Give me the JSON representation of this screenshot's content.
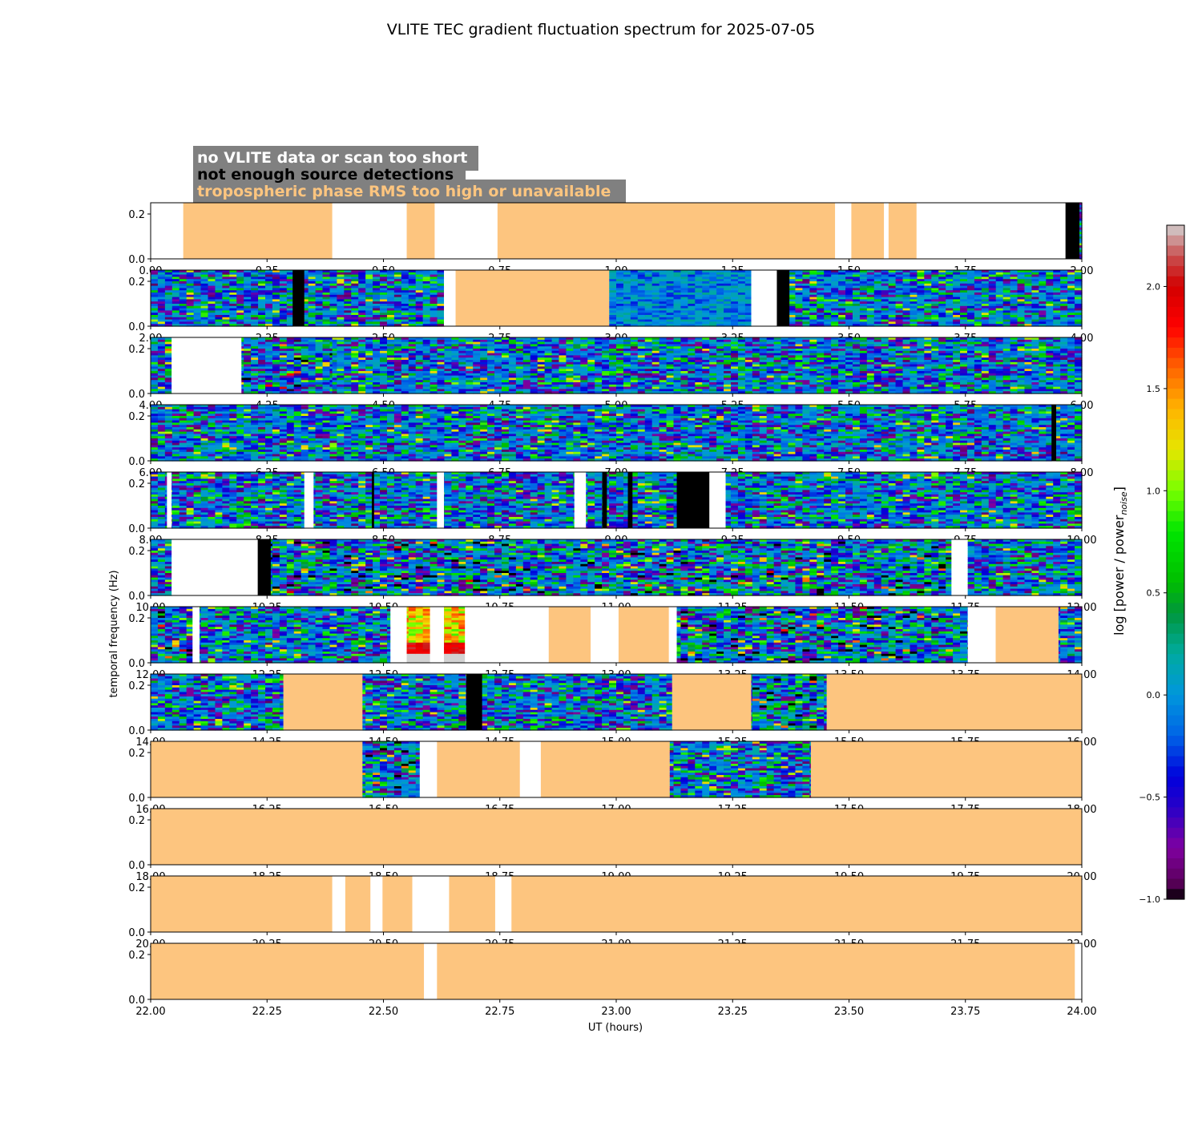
{
  "chart_data": {
    "type": "heatmap",
    "title": "VLITE TEC gradient fluctuation spectrum for 2025-07-05",
    "xlabel": "UT (hours)",
    "ylabel": "temporal frequency (Hz)",
    "colorbar_label": "log [power / power",
    "colorbar_label_sub": "noise",
    "colorbar_label_end": "]",
    "colorbar_range": [
      -1.0,
      2.3
    ],
    "colorbar_ticks": [
      "2.0",
      "1.5",
      "1.0",
      "0.5",
      "0.0",
      "−0.5",
      "−1.0"
    ],
    "colorbar_tick_values": [
      2.0,
      1.5,
      1.0,
      0.5,
      0.0,
      -0.5,
      -1.0
    ],
    "ylim": [
      0,
      0.25
    ],
    "y_ticks": [
      "0.2",
      "0.0"
    ],
    "y_tick_values": [
      0.2,
      0.0
    ],
    "legend": [
      {
        "label": "no VLITE data or scan too short",
        "color": "#ffffff"
      },
      {
        "label": "not enough source detections",
        "color": "#000000"
      },
      {
        "label": "tropospheric phase RMS too high or unavailable",
        "color": "#fdc57f"
      }
    ],
    "legend_box_color": "#808080",
    "colors": {
      "flag_troposphere": "#fdc57f",
      "flag_nodata": "#ffffff",
      "flag_detections": "#000000"
    },
    "panels": [
      {
        "x_range": [
          0,
          2
        ],
        "x_ticks": [
          "0.00",
          "0.25",
          "0.50",
          "0.75",
          "1.00",
          "1.25",
          "1.50",
          "1.75",
          "2.00"
        ],
        "segments": [
          [
            "w",
            0,
            0.07
          ],
          [
            "o",
            0.07,
            0.39
          ],
          [
            "w",
            0.39,
            0.55
          ],
          [
            "o",
            0.55,
            0.61
          ],
          [
            "w",
            0.61,
            0.745
          ],
          [
            "o",
            0.745,
            1.47
          ],
          [
            "w",
            1.47,
            1.505
          ],
          [
            "o",
            1.505,
            1.575
          ],
          [
            "w",
            1.575,
            1.585
          ],
          [
            "o",
            1.585,
            1.645
          ],
          [
            "w",
            1.645,
            1.965
          ],
          [
            "k",
            1.965,
            1.995
          ],
          [
            "d",
            1.995,
            2.0
          ]
        ]
      },
      {
        "x_range": [
          2,
          4
        ],
        "x_ticks": [
          "2.00",
          "2.25",
          "2.50",
          "2.75",
          "3.00",
          "3.25",
          "3.50",
          "3.75",
          "4.00"
        ],
        "segments": [
          [
            "d",
            2.0,
            2.305
          ],
          [
            "k",
            2.305,
            2.33
          ],
          [
            "d",
            2.33,
            2.63
          ],
          [
            "w",
            2.63,
            2.655
          ],
          [
            "o",
            2.655,
            2.985
          ],
          [
            "c",
            2.985,
            3.29
          ],
          [
            "w",
            3.29,
            3.345
          ],
          [
            "k",
            3.345,
            3.372
          ],
          [
            "d",
            3.372,
            4.0
          ]
        ]
      },
      {
        "x_range": [
          4,
          6
        ],
        "x_ticks": [
          "4.00",
          "4.25",
          "4.50",
          "4.75",
          "5.00",
          "5.25",
          "5.50",
          "5.75",
          "6.00"
        ],
        "segments": [
          [
            "h",
            4.0,
            4.045
          ],
          [
            "w",
            4.045,
            4.195
          ],
          [
            "h",
            4.195,
            4.39
          ],
          [
            "d",
            4.39,
            6.0
          ]
        ]
      },
      {
        "x_range": [
          6,
          8
        ],
        "x_ticks": [
          "6.00",
          "6.25",
          "6.50",
          "6.75",
          "7.00",
          "7.25",
          "7.50",
          "7.75",
          "8.00"
        ],
        "segments": [
          [
            "d",
            6.0,
            7.935
          ],
          [
            "k",
            7.935,
            7.945
          ],
          [
            "d",
            7.945,
            8.0
          ]
        ]
      },
      {
        "x_range": [
          8,
          10
        ],
        "x_ticks": [
          "8.00",
          "8.25",
          "8.50",
          "8.75",
          "9.00",
          "9.25",
          "9.50",
          "9.75",
          "10.00"
        ],
        "segments": [
          [
            "d",
            8.0,
            8.035
          ],
          [
            "w",
            8.035,
            8.045
          ],
          [
            "d",
            8.045,
            8.33
          ],
          [
            "w",
            8.33,
            8.35
          ],
          [
            "d",
            8.35,
            8.475
          ],
          [
            "k",
            8.475,
            8.48
          ],
          [
            "d",
            8.48,
            8.615
          ],
          [
            "w",
            8.615,
            8.63
          ],
          [
            "d",
            8.63,
            8.91
          ],
          [
            "w",
            8.91,
            8.935
          ],
          [
            "d",
            8.935,
            8.97
          ],
          [
            "k",
            8.97,
            8.98
          ],
          [
            "d",
            8.98,
            9.025
          ],
          [
            "k",
            9.025,
            9.035
          ],
          [
            "d",
            9.035,
            9.13
          ],
          [
            "k",
            9.13,
            9.2
          ],
          [
            "w",
            9.2,
            9.235
          ],
          [
            "d",
            9.235,
            10.0
          ]
        ]
      },
      {
        "x_range": [
          10,
          12
        ],
        "x_ticks": [
          "10.00",
          "10.25",
          "10.50",
          "10.75",
          "11.00",
          "11.25",
          "11.50",
          "11.75",
          "12.00"
        ],
        "segments": [
          [
            "d",
            10.0,
            10.045
          ],
          [
            "w",
            10.045,
            10.23
          ],
          [
            "k",
            10.23,
            10.258
          ],
          [
            "h",
            10.258,
            11.72
          ],
          [
            "w",
            11.72,
            11.755
          ],
          [
            "d",
            11.755,
            12.0
          ]
        ]
      },
      {
        "x_range": [
          12,
          14
        ],
        "x_ticks": [
          "12.00",
          "12.25",
          "12.50",
          "12.75",
          "13.00",
          "13.25",
          "13.50",
          "13.75",
          "14.00"
        ],
        "segments": [
          [
            "h",
            12.0,
            12.09
          ],
          [
            "w",
            12.09,
            12.105
          ],
          [
            "d",
            12.105,
            12.515
          ],
          [
            "w",
            12.515,
            12.55
          ],
          [
            "s",
            12.55,
            12.6
          ],
          [
            "w",
            12.6,
            12.63
          ],
          [
            "s",
            12.63,
            12.675
          ],
          [
            "w",
            12.675,
            12.855
          ],
          [
            "o",
            12.855,
            12.945
          ],
          [
            "w",
            12.945,
            13.005
          ],
          [
            "o",
            13.005,
            13.113
          ],
          [
            "w",
            13.113,
            13.13
          ],
          [
            "h",
            13.13,
            13.755
          ],
          [
            "w",
            13.755,
            13.815
          ],
          [
            "o",
            13.815,
            13.95
          ],
          [
            "d",
            13.95,
            14.0
          ]
        ]
      },
      {
        "x_range": [
          14,
          16
        ],
        "x_ticks": [
          "14.00",
          "14.25",
          "14.50",
          "14.75",
          "15.00",
          "15.25",
          "15.50",
          "15.75",
          "16.00"
        ],
        "segments": [
          [
            "d",
            14.0,
            14.285
          ],
          [
            "o",
            14.285,
            14.455
          ],
          [
            "d",
            14.455,
            14.678
          ],
          [
            "k",
            14.678,
            14.712
          ],
          [
            "d",
            14.712,
            15.12
          ],
          [
            "o",
            15.12,
            15.29
          ],
          [
            "h",
            15.29,
            15.452
          ],
          [
            "o",
            15.452,
            16.0
          ]
        ]
      },
      {
        "x_range": [
          16,
          18
        ],
        "x_ticks": [
          "16.00",
          "16.25",
          "16.50",
          "16.75",
          "17.00",
          "17.25",
          "17.50",
          "17.75",
          "18.00"
        ],
        "segments": [
          [
            "o",
            16.0,
            16.455
          ],
          [
            "h",
            16.455,
            16.578
          ],
          [
            "w",
            16.578,
            16.615
          ],
          [
            "o",
            16.615,
            16.793
          ],
          [
            "w",
            16.793,
            16.838
          ],
          [
            "o",
            16.838,
            17.115
          ],
          [
            "d",
            17.115,
            17.418
          ],
          [
            "o",
            17.418,
            18.0
          ]
        ]
      },
      {
        "x_range": [
          18,
          20
        ],
        "x_ticks": [
          "18.00",
          "18.25",
          "18.50",
          "18.75",
          "19.00",
          "19.25",
          "19.50",
          "19.75",
          "20.00"
        ],
        "segments": [
          [
            "o",
            18.0,
            20.0
          ]
        ]
      },
      {
        "x_range": [
          20,
          22
        ],
        "x_ticks": [
          "20.00",
          "20.25",
          "20.50",
          "20.75",
          "21.00",
          "21.25",
          "21.50",
          "21.75",
          "22.00"
        ],
        "segments": [
          [
            "o",
            20.0,
            20.39
          ],
          [
            "w",
            20.39,
            20.418
          ],
          [
            "o",
            20.418,
            20.472
          ],
          [
            "w",
            20.472,
            20.498
          ],
          [
            "o",
            20.498,
            20.562
          ],
          [
            "w",
            20.562,
            20.641
          ],
          [
            "o",
            20.641,
            20.74
          ],
          [
            "w",
            20.74,
            20.775
          ],
          [
            "o",
            20.775,
            22.0
          ]
        ]
      },
      {
        "x_range": [
          22,
          24
        ],
        "x_ticks": [
          "22.00",
          "22.25",
          "22.50",
          "22.75",
          "23.00",
          "23.25",
          "23.50",
          "23.75",
          "24.00"
        ],
        "segments": [
          [
            "o",
            22.0,
            22.587
          ],
          [
            "w",
            22.587,
            22.615
          ],
          [
            "o",
            22.615,
            23.985
          ],
          [
            "w",
            23.985,
            24.0
          ]
        ]
      }
    ]
  }
}
